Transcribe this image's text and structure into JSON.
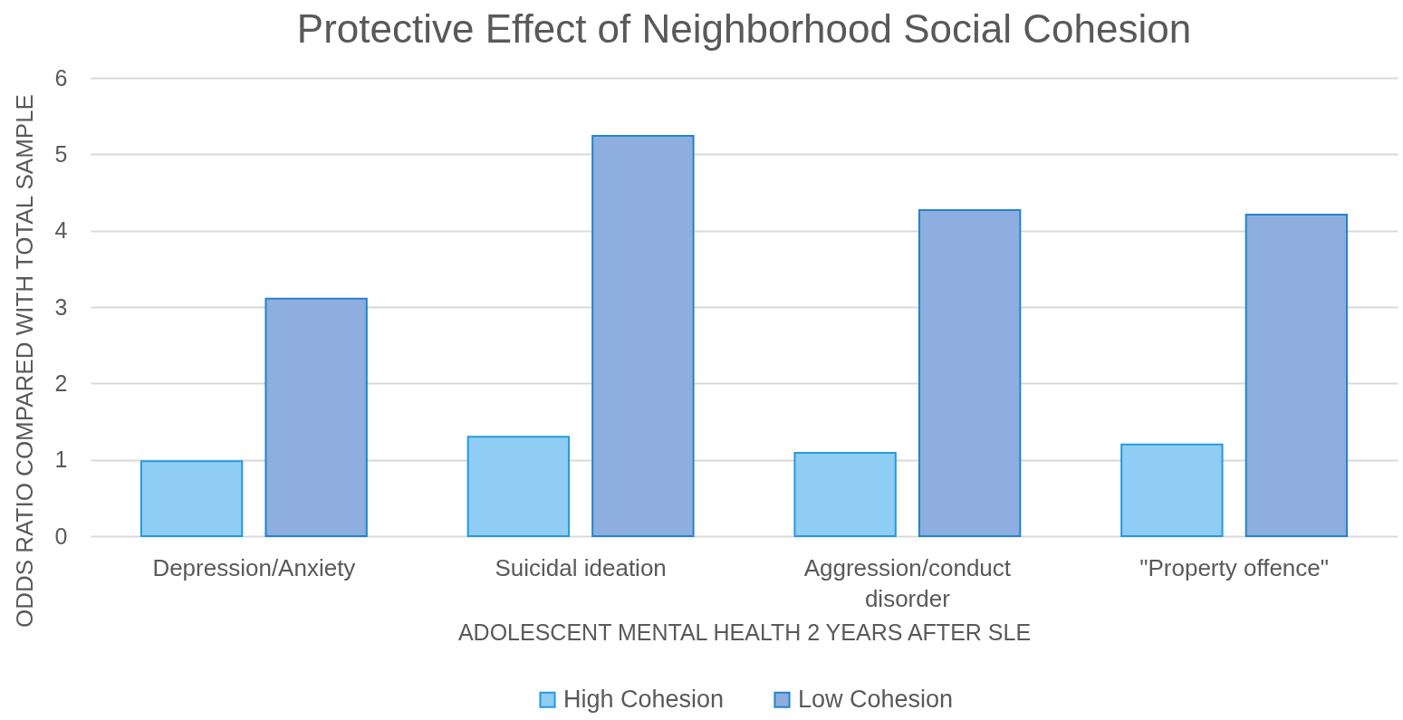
{
  "chart_data": {
    "type": "bar",
    "title": "Protective Effect of Neighborhood Social Cohesion",
    "xlabel": "ADOLESCENT MENTAL HEALTH 2 YEARS AFTER SLE",
    "ylabel": "ODDS RATIO COMPARED WITH TOTAL SAMPLE",
    "categories": [
      "Depression/Anxiety",
      "Suicidal ideation",
      "Aggression/conduct disorder",
      "\"Property offence\""
    ],
    "series": [
      {
        "name": "High Cohesion",
        "color": "#8fcdf4",
        "values": [
          0.98,
          1.3,
          1.09,
          1.2
        ]
      },
      {
        "name": "Low Cohesion",
        "color": "#8daedf",
        "values": [
          3.11,
          5.24,
          4.27,
          4.21
        ]
      }
    ],
    "ylim": [
      0,
      6
    ],
    "yticks": [
      0,
      1,
      2,
      3,
      4,
      5,
      6
    ],
    "grid": "y",
    "legend": "bottom"
  }
}
